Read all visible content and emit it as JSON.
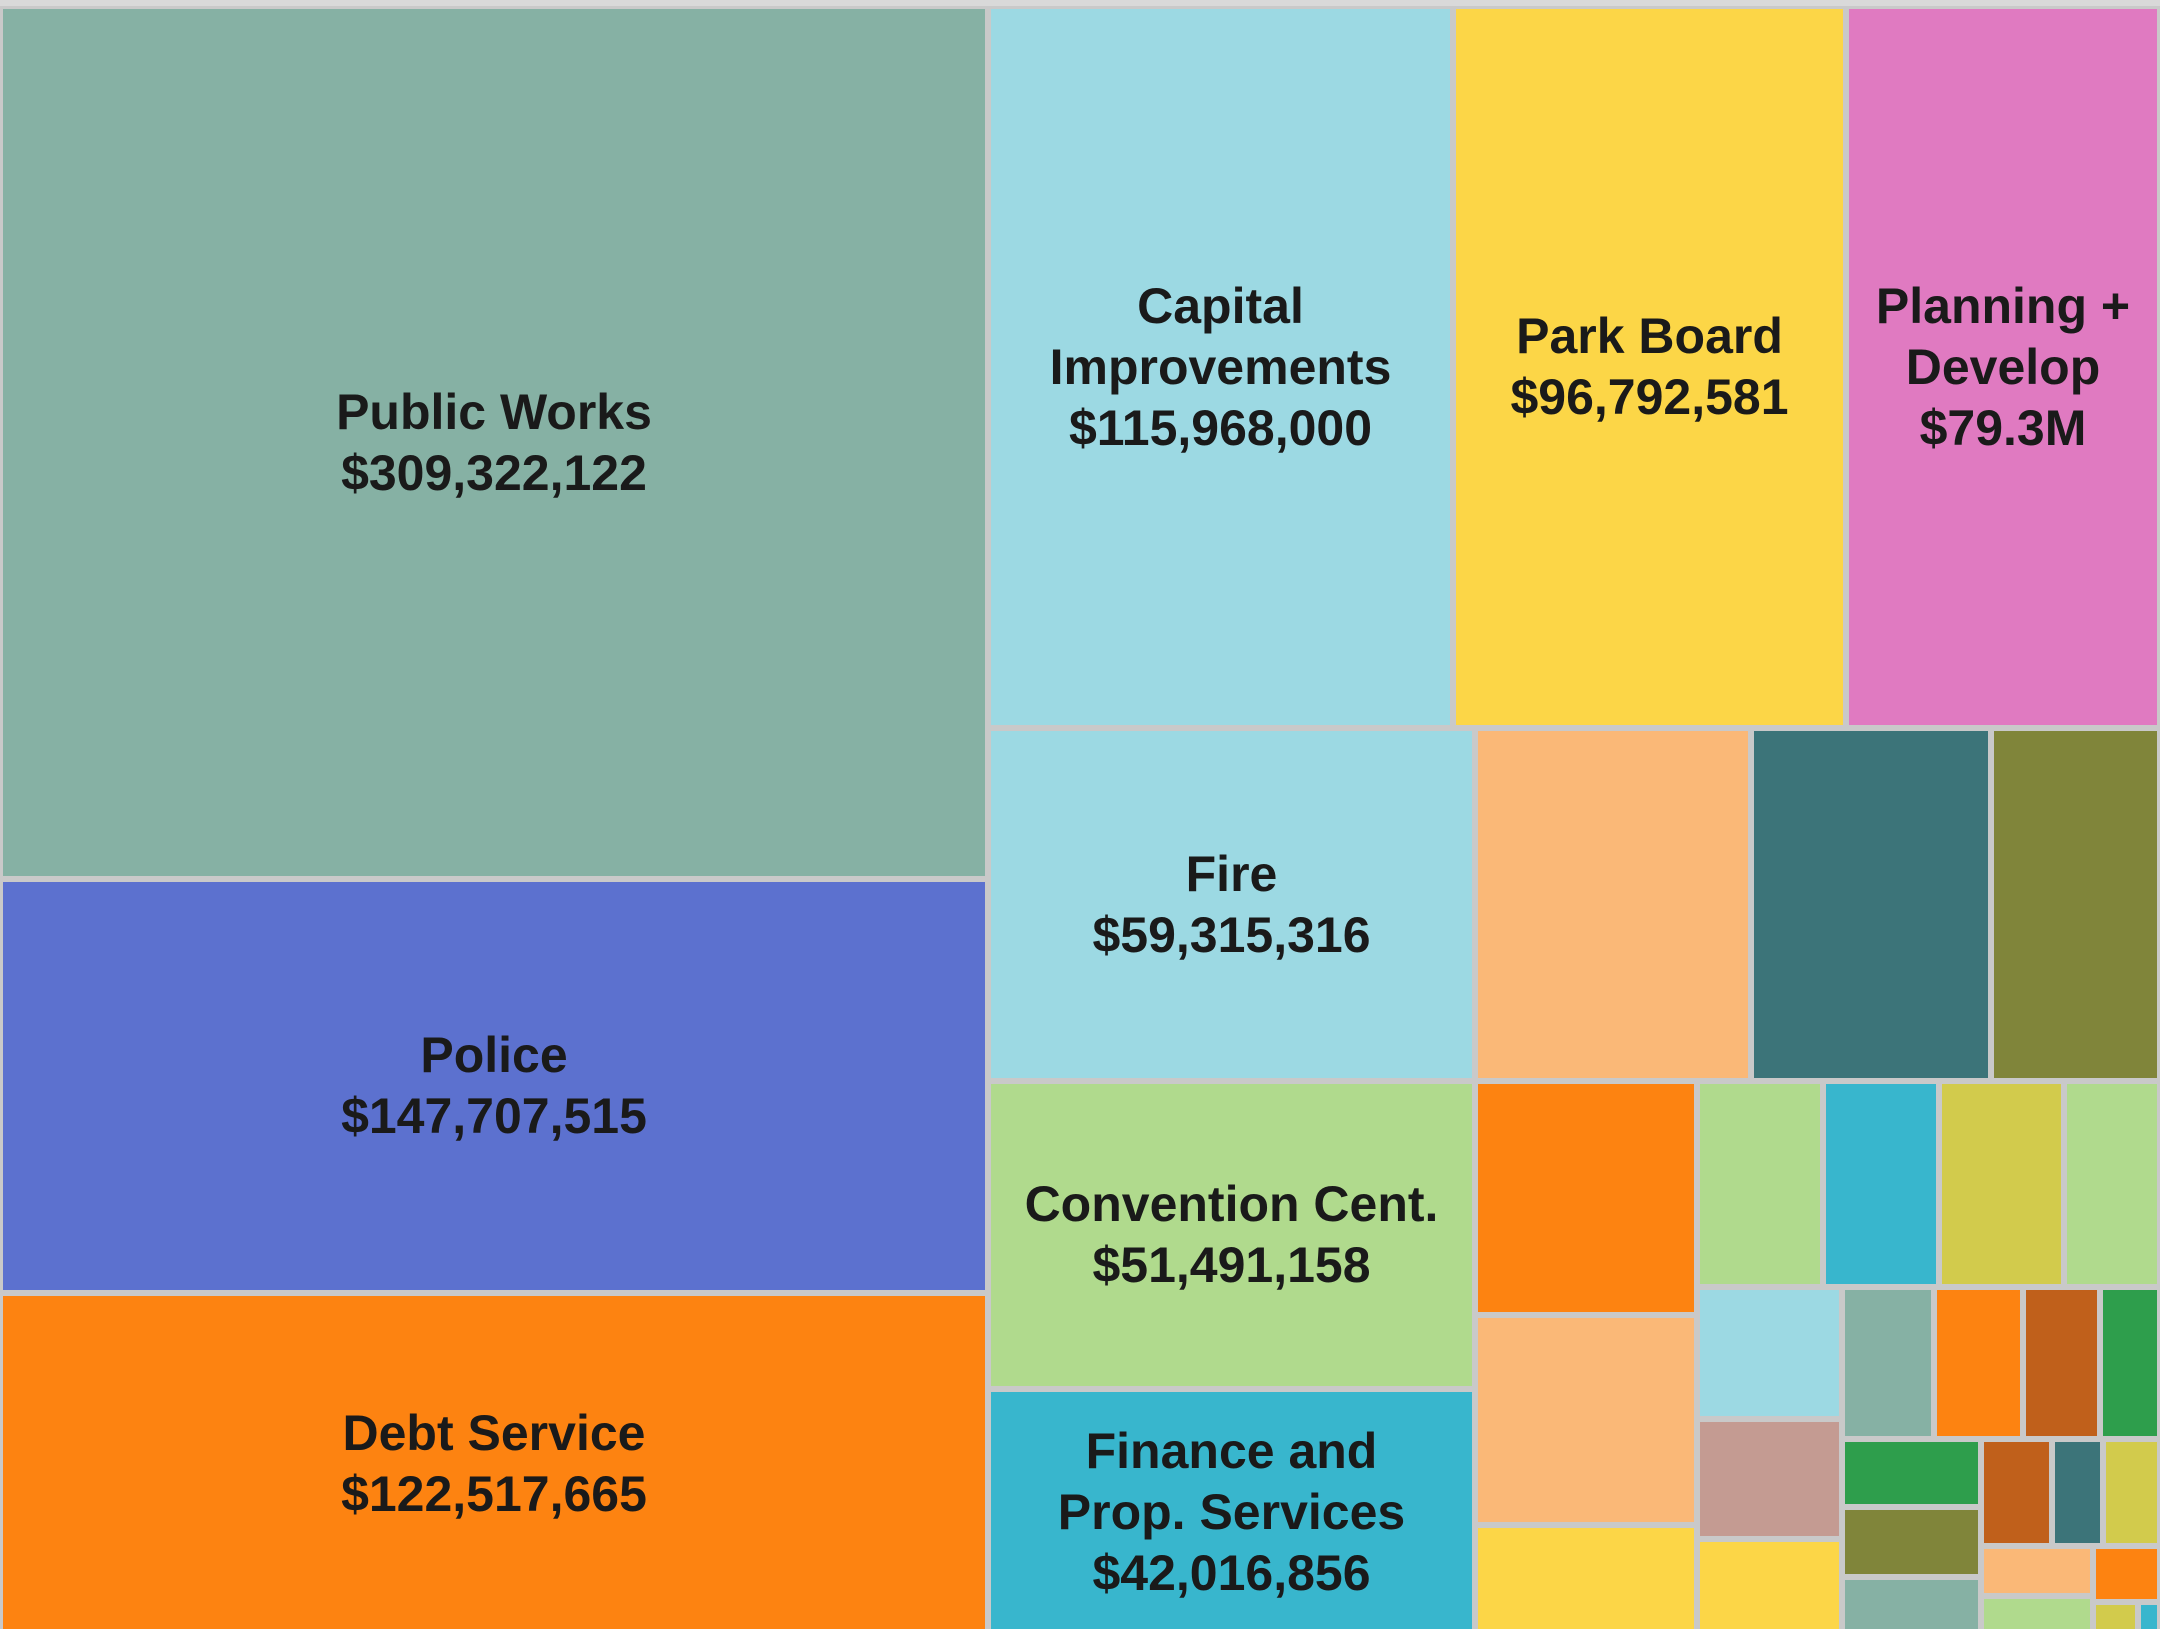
{
  "chart_data": {
    "type": "treemap",
    "cells": [
      {
        "name": "Public Works",
        "value_label": "$309,322,122",
        "value": 309322122,
        "color": "#86b1a4"
      },
      {
        "name": "Police",
        "value_label": "$147,707,515",
        "value": 147707515,
        "color": "#5c71cf"
      },
      {
        "name": "Debt Service",
        "value_label": "$122,517,665",
        "value": 122517665,
        "color": "#fd8311"
      },
      {
        "name": "Capital Improvements",
        "value_label": "$115,968,000",
        "value": 115968000,
        "color": "#9cd9e3"
      },
      {
        "name": "Park Board",
        "value_label": "$96,792,581",
        "value": 96792581,
        "color": "#fcd647"
      },
      {
        "name": "Planning + Develop",
        "value_label": "$79.3M",
        "value": 79300000,
        "color": "#e07ac1"
      },
      {
        "name": "Fire",
        "value_label": "$59,315,316",
        "value": 59315316,
        "color": "#9cd9e3"
      },
      {
        "name": "Convention Cent.",
        "value_label": "$51,491,158",
        "value": 51491158,
        "color": "#b0da8d"
      },
      {
        "name": "Finance and Prop. Services",
        "value_label": "$42,016,856",
        "value": 42016856,
        "color": "#38b6cd"
      },
      {
        "name": "",
        "value_label": "",
        "color": "#fab877"
      },
      {
        "name": "",
        "value_label": "",
        "color": "#3c7479"
      },
      {
        "name": "",
        "value_label": "",
        "color": "#80853a"
      },
      {
        "name": "",
        "value_label": "",
        "color": "#fd8311"
      },
      {
        "name": "",
        "value_label": "",
        "color": "#b0da8d"
      },
      {
        "name": "",
        "value_label": "",
        "color": "#38b6cd"
      },
      {
        "name": "",
        "value_label": "",
        "color": "#d2cb4c"
      },
      {
        "name": "",
        "value_label": "",
        "color": "#b0da8d"
      },
      {
        "name": "",
        "value_label": "",
        "color": "#fab877"
      },
      {
        "name": "",
        "value_label": "",
        "color": "#9cd9e3"
      },
      {
        "name": "",
        "value_label": "",
        "color": "#86b1a4"
      },
      {
        "name": "",
        "value_label": "",
        "color": "#fd8311"
      },
      {
        "name": "",
        "value_label": "",
        "color": "#c0601b"
      },
      {
        "name": "",
        "value_label": "",
        "color": "#2e9e4c"
      },
      {
        "name": "",
        "value_label": "",
        "color": "#c49b92"
      },
      {
        "name": "",
        "value_label": "",
        "color": "#2e9e4c"
      },
      {
        "name": "",
        "value_label": "",
        "color": "#c0601b"
      },
      {
        "name": "",
        "value_label": "",
        "color": "#3c7479"
      },
      {
        "name": "",
        "value_label": "",
        "color": "#d2cb4c"
      },
      {
        "name": "",
        "value_label": "",
        "color": "#80853a"
      },
      {
        "name": "",
        "value_label": "",
        "color": "#fab877"
      },
      {
        "name": "",
        "value_label": "",
        "color": "#fd8311"
      },
      {
        "name": "",
        "value_label": "",
        "color": "#fcd647"
      },
      {
        "name": "",
        "value_label": "",
        "color": "#fcd647"
      },
      {
        "name": "",
        "value_label": "",
        "color": "#86b1a4"
      },
      {
        "name": "",
        "value_label": "",
        "color": "#b0da8d"
      },
      {
        "name": "",
        "value_label": "",
        "color": "#d2cb4c"
      },
      {
        "name": "",
        "value_label": "",
        "color": "#38b6cd"
      }
    ]
  }
}
